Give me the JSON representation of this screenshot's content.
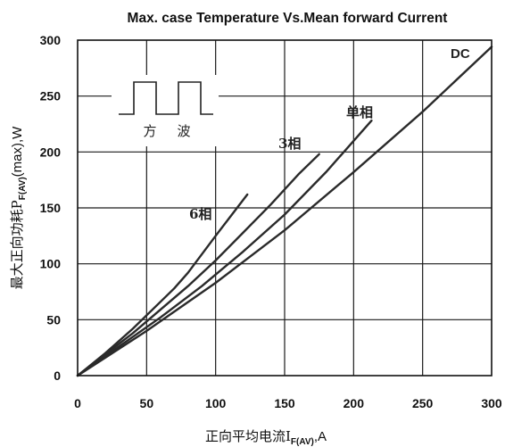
{
  "chart_data": {
    "type": "line",
    "title": "Max. case Temperature Vs.Mean forward Current",
    "ylabel": {
      "prefix": "最大正向功耗P",
      "sub": "F(AV)",
      "suffix": "(max),W"
    },
    "xlabel": {
      "prefix": "正向平均电流I",
      "sub": "F(AV)",
      "suffix": ",A"
    },
    "xlim": [
      0,
      300
    ],
    "ylim": [
      0,
      300
    ],
    "x_ticks": [
      "0",
      "50",
      "100",
      "150",
      "200",
      "250",
      "300"
    ],
    "y_ticks": [
      "0",
      "50",
      "100",
      "150",
      "200",
      "250",
      "300"
    ],
    "grid": true,
    "inset": {
      "label_left": "方",
      "label_right": "波"
    },
    "series": [
      {
        "name": "6相",
        "x": [
          0,
          20,
          40,
          60,
          70,
          80,
          100,
          123
        ],
        "y": [
          0,
          20,
          42,
          66,
          78,
          92,
          125,
          162
        ]
      },
      {
        "name": "3相",
        "x": [
          0,
          20,
          40,
          60,
          80,
          100,
          120,
          140,
          160,
          175
        ],
        "y": [
          0,
          19,
          38,
          59,
          80,
          103,
          128,
          153,
          180,
          198
        ]
      },
      {
        "name": "单相",
        "x": [
          0,
          30,
          60,
          90,
          120,
          150,
          180,
          213
        ],
        "y": [
          0,
          26,
          52,
          80,
          111,
          144,
          182,
          228
        ]
      },
      {
        "name": "DC",
        "x": [
          0,
          50,
          100,
          150,
          200,
          250,
          300
        ],
        "y": [
          0,
          40,
          83,
          130,
          182,
          236,
          294
        ]
      }
    ]
  }
}
